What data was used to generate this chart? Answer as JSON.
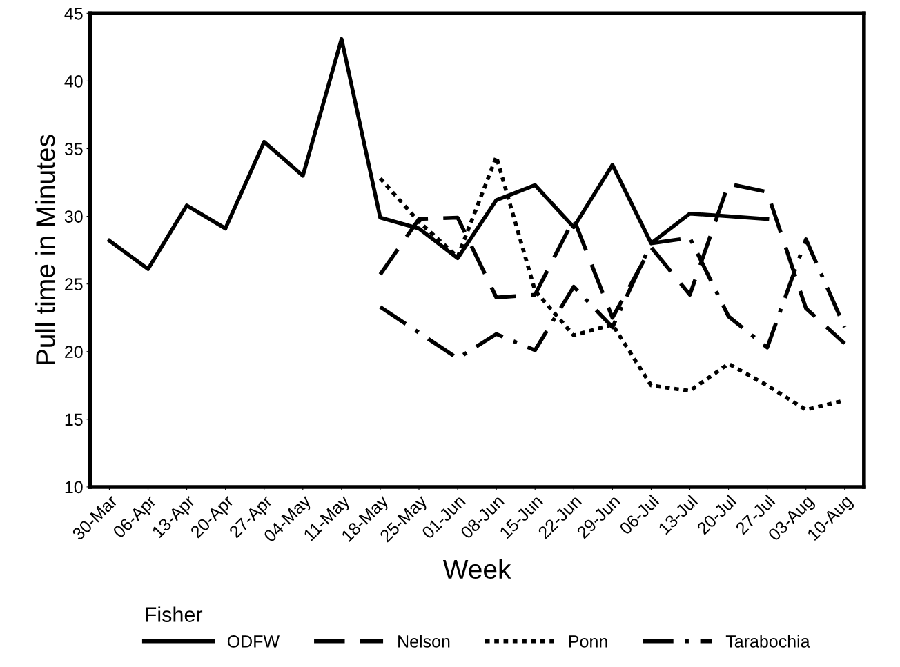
{
  "chart_data": {
    "type": "line",
    "xlabel": "Week",
    "ylabel": "Pull time in Minutes",
    "legend_title": "Fisher",
    "legend": "bottom",
    "grid": false,
    "categories": [
      "30-Mar",
      "06-Apr",
      "13-Apr",
      "20-Apr",
      "27-Apr",
      "04-May",
      "11-May",
      "18-May",
      "25-May",
      "01-Jun",
      "08-Jun",
      "15-Jun",
      "22-Jun",
      "29-Jun",
      "06-Jul",
      "13-Jul",
      "20-Jul",
      "27-Jul",
      "03-Aug",
      "10-Aug"
    ],
    "ylim": [
      10,
      45
    ],
    "yticks": [
      10,
      15,
      20,
      25,
      30,
      35,
      40,
      45
    ],
    "series": [
      {
        "name": "ODFW",
        "color": "#000000",
        "line_style": "solid",
        "values": [
          28.2,
          26.1,
          30.8,
          29.1,
          35.5,
          33.0,
          43.1,
          29.9,
          29.1,
          26.9,
          31.2,
          32.3,
          29.2,
          33.8,
          28.0,
          30.2,
          30.0,
          29.8,
          null,
          null
        ]
      },
      {
        "name": "Nelson",
        "color": "#000000",
        "line_style": "dashed",
        "values": [
          null,
          null,
          null,
          null,
          null,
          null,
          null,
          25.7,
          29.8,
          29.9,
          24.0,
          24.2,
          29.8,
          22.5,
          27.7,
          24.2,
          32.4,
          31.8,
          23.2,
          20.6
        ]
      },
      {
        "name": "Ponn",
        "color": "#000000",
        "line_style": "dotted",
        "values": [
          null,
          null,
          null,
          null,
          null,
          null,
          null,
          32.8,
          29.6,
          27.0,
          34.4,
          24.5,
          21.2,
          22.0,
          17.5,
          17.1,
          19.1,
          17.5,
          15.7,
          16.4
        ]
      },
      {
        "name": "Tarabochia",
        "color": "#000000",
        "line_style": "dashdot",
        "values": [
          null,
          null,
          null,
          null,
          null,
          null,
          null,
          23.3,
          21.4,
          19.5,
          21.3,
          20.1,
          24.8,
          21.8,
          28.0,
          28.4,
          22.6,
          20.3,
          28.3,
          21.8
        ]
      }
    ]
  }
}
